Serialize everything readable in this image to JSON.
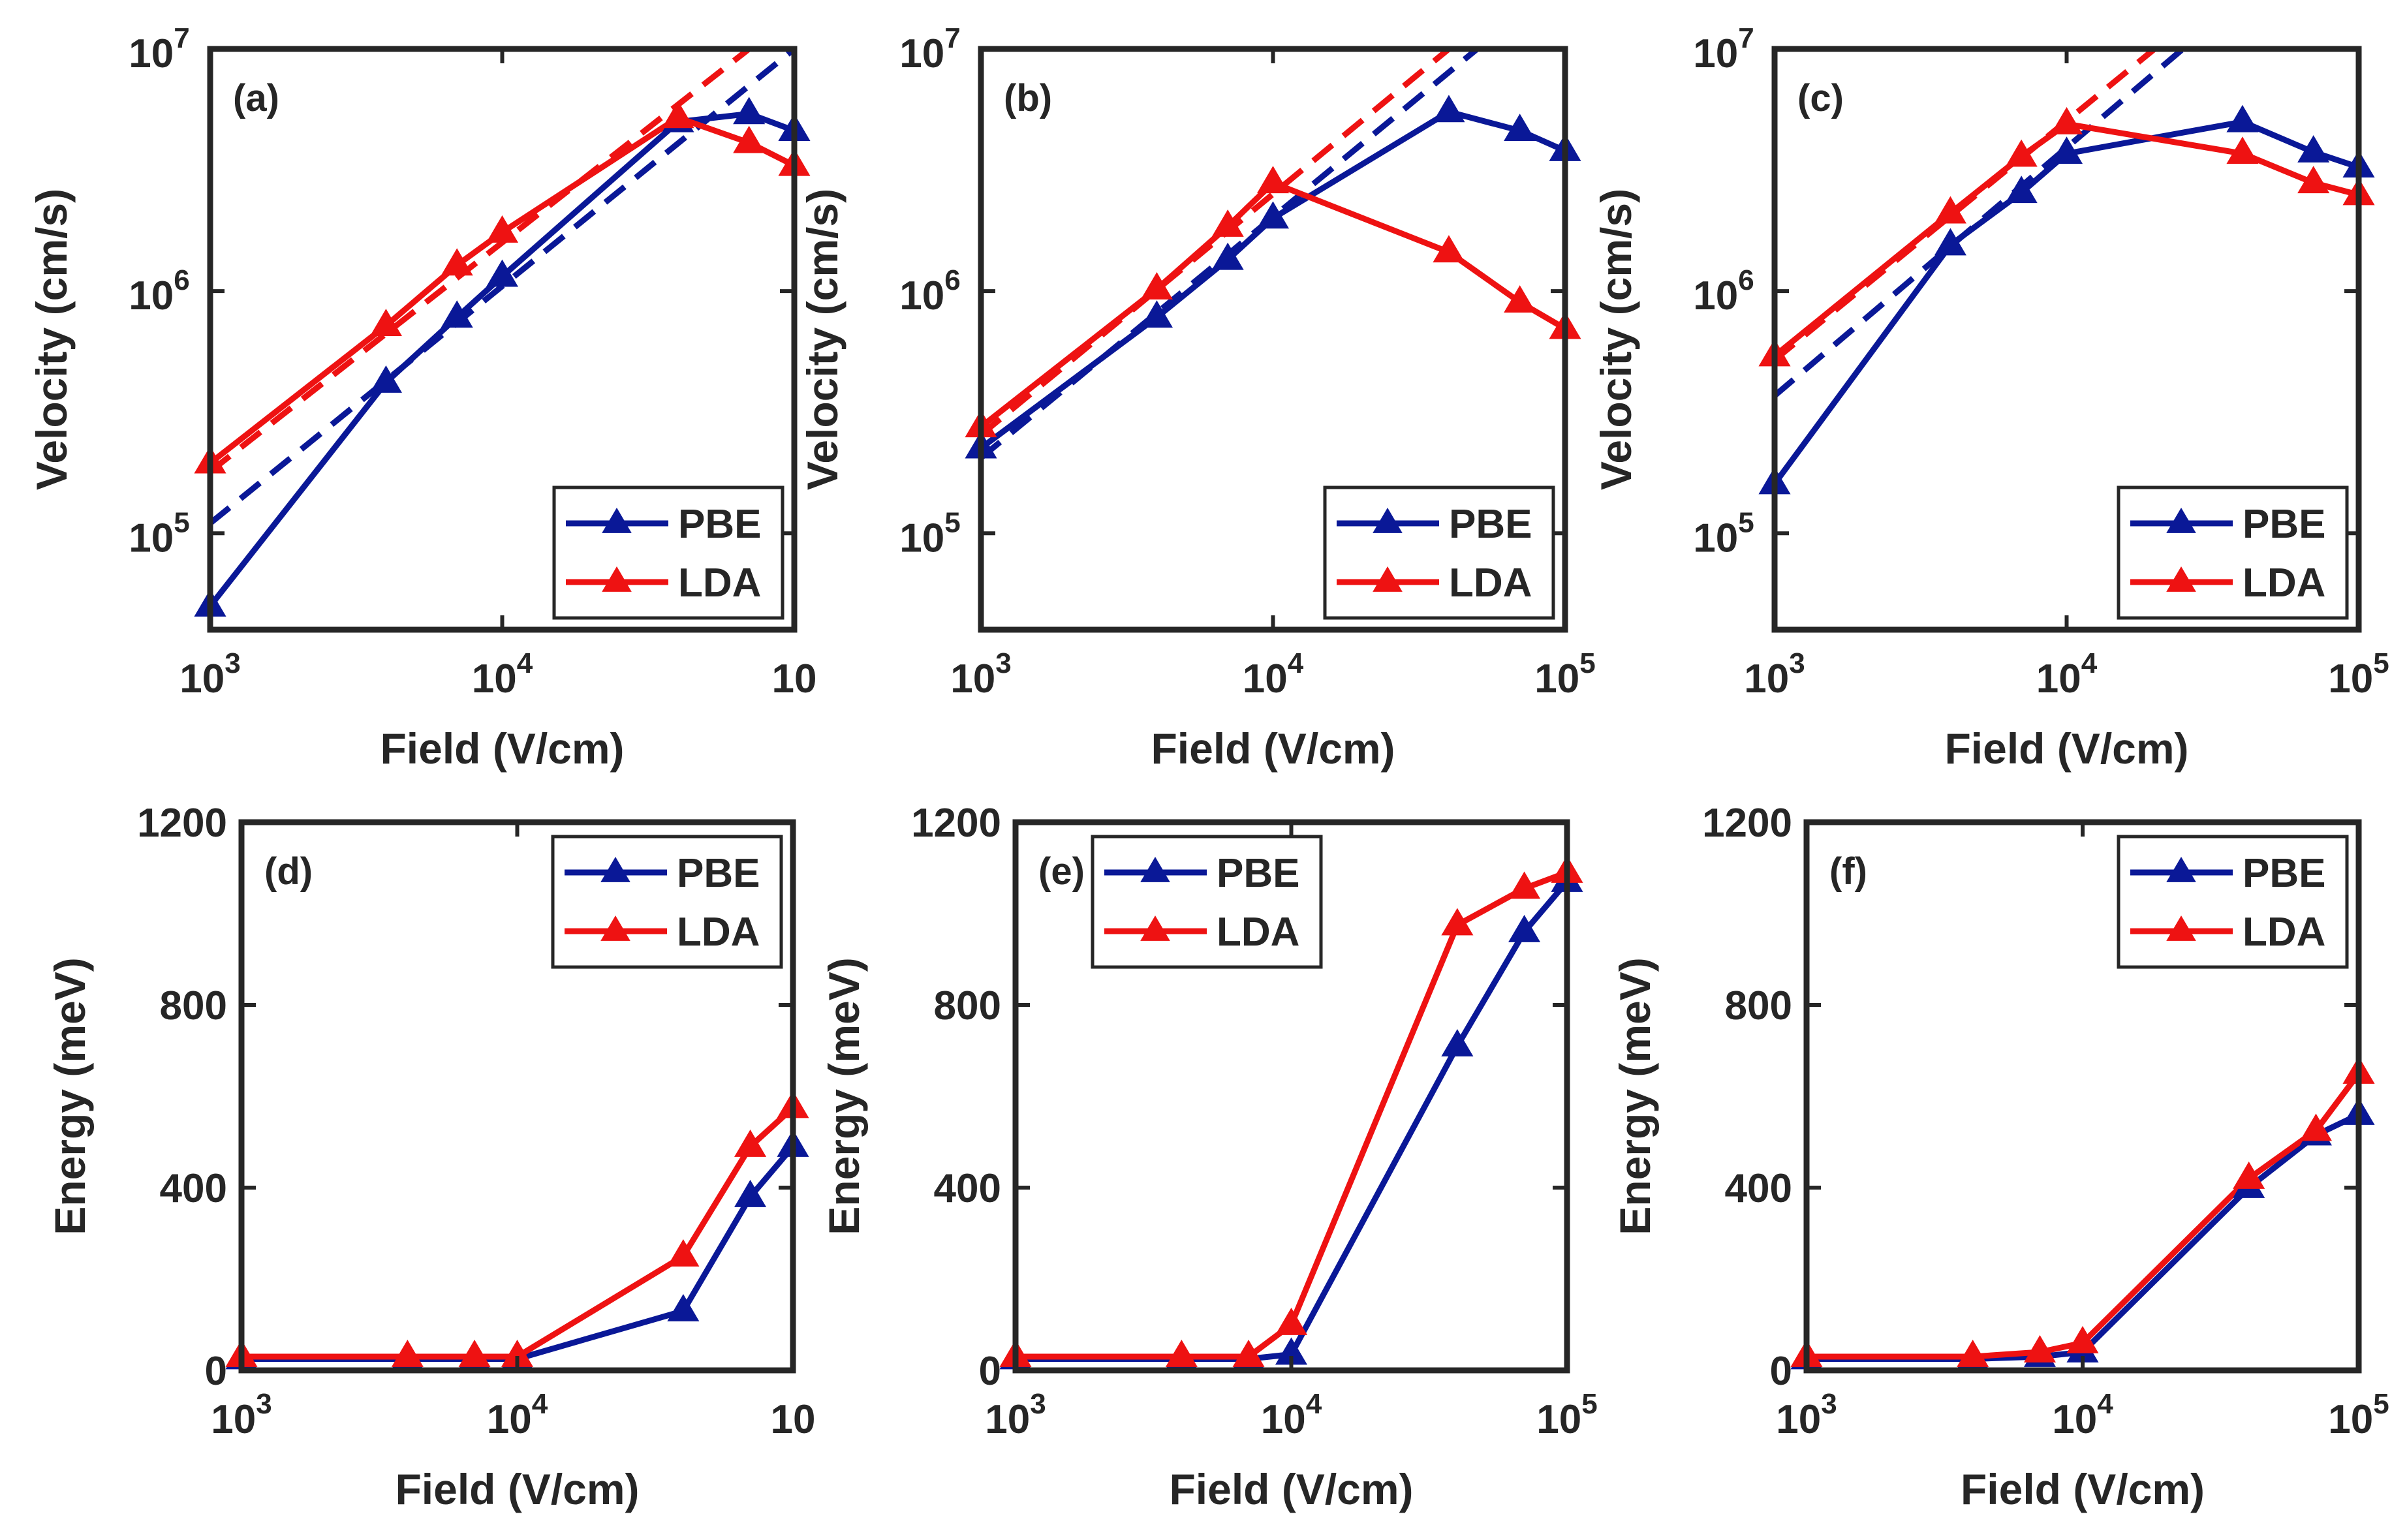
{
  "colors": {
    "PBE": "#0a1897",
    "LDA": "#ee1212",
    "axis": "#262626"
  },
  "chart_data": [
    {
      "type": "line",
      "panel_label": "(a)",
      "yscale": "log",
      "xscale": "log",
      "xlabel": "Field (V/cm)",
      "ylabel": "Velocity (cm/s)",
      "xlim": [
        1000,
        100000
      ],
      "ylim": [
        40000,
        10000000
      ],
      "xtick_labels": [
        {
          "base": "10",
          "exp": "3"
        },
        {
          "base": "10",
          "exp": "4"
        },
        {
          "base": "10",
          "exp": ""
        }
      ],
      "ytick_labels": [
        {
          "base": "10",
          "exp": "5"
        },
        {
          "base": "10",
          "exp": "6"
        },
        {
          "base": "10",
          "exp": "7"
        }
      ],
      "legend": {
        "location": "bottom-right",
        "entries": [
          "PBE",
          "LDA"
        ]
      },
      "series": [
        {
          "name": "PBE",
          "color": "#0a1897",
          "x": [
            1000,
            4000,
            7000,
            10000,
            40000,
            70000,
            100000
          ],
          "y": [
            50000,
            420000,
            780000,
            1150000,
            5000000,
            5400000,
            4600000
          ]
        },
        {
          "name": "LDA",
          "color": "#ee1212",
          "x": [
            1000,
            4000,
            7000,
            10000,
            40000,
            70000,
            100000
          ],
          "y": [
            195000,
            720000,
            1280000,
            1750000,
            5200000,
            4100000,
            3300000
          ]
        }
      ],
      "fits": [
        {
          "name": "PBE fit",
          "color": "#0a1897",
          "x": [
            1000,
            100000
          ],
          "y": [
            110000,
            10000000
          ]
        },
        {
          "name": "LDA fit",
          "color": "#ee1212",
          "x": [
            1000,
            70000
          ],
          "y": [
            180000,
            10000000
          ]
        }
      ]
    },
    {
      "type": "line",
      "panel_label": "(b)",
      "yscale": "log",
      "xscale": "log",
      "xlabel": "Field (V/cm)",
      "ylabel": "Velocity (cm/s)",
      "xlim": [
        1000,
        100000
      ],
      "ylim": [
        40000,
        10000000
      ],
      "xtick_labels": [
        {
          "base": "10",
          "exp": "3"
        },
        {
          "base": "10",
          "exp": "4"
        },
        {
          "base": "10",
          "exp": "5"
        }
      ],
      "ytick_labels": [
        {
          "base": "10",
          "exp": "5"
        },
        {
          "base": "10",
          "exp": "6"
        },
        {
          "base": "10",
          "exp": "7"
        }
      ],
      "legend": {
        "location": "bottom-right",
        "entries": [
          "PBE",
          "LDA"
        ]
      },
      "series": [
        {
          "name": "PBE",
          "color": "#0a1897",
          "x": [
            1000,
            4000,
            7000,
            10000,
            40000,
            70000,
            100000
          ],
          "y": [
            225000,
            780000,
            1350000,
            2000000,
            5500000,
            4600000,
            3800000
          ]
        },
        {
          "name": "LDA",
          "color": "#ee1212",
          "x": [
            1000,
            4000,
            7000,
            10000,
            40000,
            70000,
            100000
          ],
          "y": [
            275000,
            1020000,
            1850000,
            2800000,
            1450000,
            900000,
            700000
          ]
        }
      ],
      "fits": [
        {
          "name": "PBE fit",
          "color": "#0a1897",
          "x": [
            1000,
            50000
          ],
          "y": [
            205000,
            10000000
          ]
        },
        {
          "name": "LDA fit",
          "color": "#ee1212",
          "x": [
            1000,
            40000
          ],
          "y": [
            255000,
            10000000
          ]
        }
      ]
    },
    {
      "type": "line",
      "panel_label": "(c)",
      "yscale": "log",
      "xscale": "log",
      "xlabel": "Field (V/cm)",
      "ylabel": "Velocity (cm/s)",
      "xlim": [
        1000,
        100000
      ],
      "ylim": [
        40000,
        10000000
      ],
      "xtick_labels": [
        {
          "base": "10",
          "exp": "3"
        },
        {
          "base": "10",
          "exp": "4"
        },
        {
          "base": "10",
          "exp": "5"
        }
      ],
      "ytick_labels": [
        {
          "base": "10",
          "exp": "5"
        },
        {
          "base": "10",
          "exp": "6"
        },
        {
          "base": "10",
          "exp": "7"
        }
      ],
      "legend": {
        "location": "bottom-right",
        "entries": [
          "PBE",
          "LDA"
        ]
      },
      "series": [
        {
          "name": "PBE",
          "color": "#0a1897",
          "x": [
            1000,
            4000,
            7000,
            10000,
            40000,
            70000,
            100000
          ],
          "y": [
            160000,
            1550000,
            2550000,
            3700000,
            5000000,
            3750000,
            3250000
          ]
        },
        {
          "name": "LDA",
          "color": "#ee1212",
          "x": [
            1000,
            4000,
            7000,
            10000,
            40000,
            70000,
            100000
          ],
          "y": [
            540000,
            2100000,
            3600000,
            4900000,
            3700000,
            2800000,
            2500000
          ]
        }
      ],
      "fits": [
        {
          "name": "PBE fit",
          "color": "#0a1897",
          "x": [
            1000,
            25000
          ],
          "y": [
            370000,
            10000000
          ]
        },
        {
          "name": "LDA fit",
          "color": "#ee1212",
          "x": [
            1000,
            20000
          ],
          "y": [
            520000,
            10000000
          ]
        }
      ]
    },
    {
      "type": "line",
      "panel_label": "(d)",
      "yscale": "linear",
      "xscale": "log",
      "xlabel": "Field (V/cm)",
      "ylabel": "Energy (meV)",
      "xlim": [
        1000,
        100000
      ],
      "ylim": [
        0,
        1200
      ],
      "xtick_labels": [
        {
          "base": "10",
          "exp": "3"
        },
        {
          "base": "10",
          "exp": "4"
        },
        {
          "base": "10",
          "exp": ""
        }
      ],
      "ytick_labels": [
        "0",
        "400",
        "800",
        "1200"
      ],
      "legend": {
        "location": "top-right",
        "entries": [
          "PBE",
          "LDA"
        ]
      },
      "series": [
        {
          "name": "PBE",
          "color": "#0a1897",
          "x": [
            1000,
            4000,
            7000,
            10000,
            40000,
            70000,
            100000
          ],
          "y": [
            25,
            25,
            25,
            25,
            130,
            380,
            490
          ]
        },
        {
          "name": "LDA",
          "color": "#ee1212",
          "x": [
            1000,
            4000,
            7000,
            10000,
            40000,
            70000,
            100000
          ],
          "y": [
            30,
            30,
            30,
            30,
            250,
            490,
            575
          ]
        }
      ]
    },
    {
      "type": "line",
      "panel_label": "(e)",
      "yscale": "linear",
      "xscale": "log",
      "xlabel": "Field (V/cm)",
      "ylabel": "Energy (meV)",
      "xlim": [
        1000,
        100000
      ],
      "ylim": [
        0,
        1200
      ],
      "xtick_labels": [
        {
          "base": "10",
          "exp": "3"
        },
        {
          "base": "10",
          "exp": "4"
        },
        {
          "base": "10",
          "exp": "5"
        }
      ],
      "ytick_labels": [
        "0",
        "400",
        "800",
        "1200"
      ],
      "legend": {
        "location": "top-left-inside",
        "entries": [
          "PBE",
          "LDA"
        ]
      },
      "series": [
        {
          "name": "PBE",
          "color": "#0a1897",
          "x": [
            1000,
            4000,
            7000,
            10000,
            40000,
            70000,
            100000
          ],
          "y": [
            25,
            25,
            25,
            35,
            710,
            960,
            1070
          ]
        },
        {
          "name": "LDA",
          "color": "#ee1212",
          "x": [
            1000,
            4000,
            7000,
            10000,
            40000,
            70000,
            100000
          ],
          "y": [
            30,
            30,
            30,
            100,
            975,
            1055,
            1090
          ]
        }
      ]
    },
    {
      "type": "line",
      "panel_label": "(f)",
      "yscale": "linear",
      "xscale": "log",
      "xlabel": "Field (V/cm)",
      "ylabel": "Energy (meV)",
      "xlim": [
        1000,
        100000
      ],
      "ylim": [
        0,
        1200
      ],
      "xtick_labels": [
        {
          "base": "10",
          "exp": "3"
        },
        {
          "base": "10",
          "exp": "4"
        },
        {
          "base": "10",
          "exp": "5"
        }
      ],
      "ytick_labels": [
        "0",
        "400",
        "800",
        "1200"
      ],
      "legend": {
        "location": "top-right",
        "entries": [
          "PBE",
          "LDA"
        ]
      },
      "series": [
        {
          "name": "PBE",
          "color": "#0a1897",
          "x": [
            1000,
            4000,
            7000,
            10000,
            40000,
            70000,
            100000
          ],
          "y": [
            25,
            25,
            30,
            40,
            400,
            515,
            560
          ]
        },
        {
          "name": "LDA",
          "color": "#ee1212",
          "x": [
            1000,
            4000,
            7000,
            10000,
            40000,
            70000,
            100000
          ],
          "y": [
            30,
            30,
            40,
            60,
            420,
            525,
            650
          ]
        }
      ]
    }
  ]
}
